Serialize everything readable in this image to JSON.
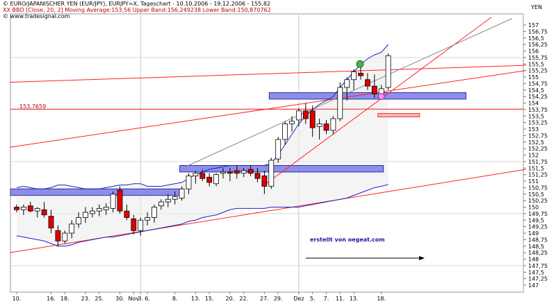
{
  "header": {
    "title_line": "© EURO/JAPANISCHER YEN (EUR/JPY), EURJPY=X, Tageschart - 10.10.2006 - 19.12.2006 - 155,82",
    "indicator_line": "XX BBD [Close, 20, 2] Moving Average:153,56 Upper Band:156,249238 Lower Band:150,870762",
    "source_line": "© www.tradesignal.com",
    "currency": "YEN"
  },
  "colors": {
    "up_candle": "#ffffff",
    "down_candle": "#e00000",
    "band_line": "#2020c0",
    "trend_line": "#ff2020",
    "zone_fill": "#8e8ee8",
    "annotation_text": "#1a1aa0"
  },
  "chart_data": {
    "type": "candlestick",
    "x_tick_labels": [
      "10.",
      "16.",
      "18.",
      "23.",
      "25.",
      "30.",
      "Nov",
      "3.",
      "6.",
      "8.",
      "13.",
      "15.",
      "20.",
      "22.",
      "27.",
      "29.",
      "Dez",
      "5.",
      "7.",
      "11.",
      "13.",
      "18."
    ],
    "y_ticks": [
      "157",
      "156,75",
      "156,5",
      "156,25",
      "156",
      "155,75",
      "155,5",
      "155,25",
      "155",
      "154,75",
      "154,5",
      "154,25",
      "154",
      "153,75",
      "153,5",
      "153,25",
      "153",
      "152,75",
      "152,5",
      "152,25",
      "152",
      "151,75",
      "151,5",
      "151,25",
      "151",
      "150,75",
      "150,5",
      "150,25",
      "150",
      "149,75",
      "149,5",
      "149,25",
      "149",
      "148,75",
      "148,5",
      "148,25",
      "148",
      "147,75",
      "147,5",
      "147,25",
      "147"
    ],
    "ylim": [
      147,
      157.25
    ],
    "candles": [
      {
        "o": 150.0,
        "h": 150.1,
        "l": 149.8,
        "c": 149.9
      },
      {
        "o": 149.9,
        "h": 150.1,
        "l": 149.7,
        "c": 150.0
      },
      {
        "o": 150.05,
        "h": 150.2,
        "l": 149.8,
        "c": 149.85
      },
      {
        "o": 149.85,
        "h": 150.0,
        "l": 149.6,
        "c": 149.95
      },
      {
        "o": 149.9,
        "h": 150.2,
        "l": 149.6,
        "c": 149.7
      },
      {
        "o": 149.65,
        "h": 149.9,
        "l": 149.0,
        "c": 149.2
      },
      {
        "o": 149.1,
        "h": 149.3,
        "l": 148.5,
        "c": 148.7
      },
      {
        "o": 148.7,
        "h": 149.1,
        "l": 148.6,
        "c": 149.0
      },
      {
        "o": 149.0,
        "h": 149.5,
        "l": 148.8,
        "c": 149.35
      },
      {
        "o": 149.35,
        "h": 149.8,
        "l": 149.2,
        "c": 149.6
      },
      {
        "o": 149.6,
        "h": 150.0,
        "l": 149.4,
        "c": 149.8
      },
      {
        "o": 149.75,
        "h": 150.0,
        "l": 149.6,
        "c": 149.85
      },
      {
        "o": 149.85,
        "h": 150.1,
        "l": 149.65,
        "c": 149.95
      },
      {
        "o": 149.9,
        "h": 150.15,
        "l": 149.7,
        "c": 150.0
      },
      {
        "o": 149.95,
        "h": 150.6,
        "l": 149.8,
        "c": 150.5
      },
      {
        "o": 150.65,
        "h": 150.8,
        "l": 149.75,
        "c": 149.85
      },
      {
        "o": 149.85,
        "h": 150.1,
        "l": 149.5,
        "c": 149.6
      },
      {
        "o": 149.55,
        "h": 149.7,
        "l": 148.95,
        "c": 149.1
      },
      {
        "o": 149.1,
        "h": 149.6,
        "l": 148.9,
        "c": 149.5
      },
      {
        "o": 149.5,
        "h": 149.8,
        "l": 149.3,
        "c": 149.6
      },
      {
        "o": 149.6,
        "h": 150.1,
        "l": 149.4,
        "c": 150.0
      },
      {
        "o": 150.05,
        "h": 150.3,
        "l": 149.9,
        "c": 150.2
      },
      {
        "o": 150.2,
        "h": 150.5,
        "l": 150.0,
        "c": 150.3
      },
      {
        "o": 150.3,
        "h": 150.6,
        "l": 150.1,
        "c": 150.4
      },
      {
        "o": 150.35,
        "h": 150.8,
        "l": 150.25,
        "c": 150.7
      },
      {
        "o": 150.7,
        "h": 151.3,
        "l": 150.5,
        "c": 151.2
      },
      {
        "o": 151.2,
        "h": 151.4,
        "l": 150.9,
        "c": 151.3
      },
      {
        "o": 151.3,
        "h": 151.45,
        "l": 151.0,
        "c": 151.1
      },
      {
        "o": 151.15,
        "h": 151.3,
        "l": 150.8,
        "c": 150.95
      },
      {
        "o": 150.9,
        "h": 151.3,
        "l": 150.8,
        "c": 151.25
      },
      {
        "o": 151.3,
        "h": 151.5,
        "l": 151.1,
        "c": 151.35
      },
      {
        "o": 151.35,
        "h": 151.5,
        "l": 151.0,
        "c": 151.3
      },
      {
        "o": 151.4,
        "h": 151.6,
        "l": 151.1,
        "c": 151.3
      },
      {
        "o": 151.3,
        "h": 151.5,
        "l": 151.15,
        "c": 151.4
      },
      {
        "o": 151.45,
        "h": 151.6,
        "l": 151.2,
        "c": 151.3
      },
      {
        "o": 151.3,
        "h": 151.5,
        "l": 150.95,
        "c": 151.1
      },
      {
        "o": 151.2,
        "h": 151.4,
        "l": 150.5,
        "c": 150.8
      },
      {
        "o": 150.8,
        "h": 151.9,
        "l": 150.7,
        "c": 151.8
      },
      {
        "o": 151.85,
        "h": 152.7,
        "l": 151.7,
        "c": 152.6
      },
      {
        "o": 152.6,
        "h": 153.3,
        "l": 152.4,
        "c": 153.2
      },
      {
        "o": 153.2,
        "h": 153.5,
        "l": 152.9,
        "c": 153.3
      },
      {
        "o": 153.35,
        "h": 153.8,
        "l": 153.1,
        "c": 153.7
      },
      {
        "o": 153.7,
        "h": 154.0,
        "l": 153.2,
        "c": 153.4
      },
      {
        "o": 153.7,
        "h": 153.9,
        "l": 152.7,
        "c": 153.05
      },
      {
        "o": 153.1,
        "h": 153.4,
        "l": 152.6,
        "c": 153.2
      },
      {
        "o": 153.2,
        "h": 153.35,
        "l": 152.8,
        "c": 152.95
      },
      {
        "o": 152.95,
        "h": 153.5,
        "l": 152.8,
        "c": 153.4
      },
      {
        "o": 153.4,
        "h": 154.8,
        "l": 153.3,
        "c": 154.6
      },
      {
        "o": 154.6,
        "h": 155.0,
        "l": 154.1,
        "c": 154.9
      },
      {
        "o": 154.9,
        "h": 155.3,
        "l": 154.5,
        "c": 155.2
      },
      {
        "o": 155.15,
        "h": 155.5,
        "l": 154.9,
        "c": 155.05
      },
      {
        "o": 154.9,
        "h": 155.15,
        "l": 154.5,
        "c": 154.65
      },
      {
        "o": 154.65,
        "h": 155.1,
        "l": 154.2,
        "c": 154.35
      },
      {
        "o": 154.35,
        "h": 154.7,
        "l": 154.15,
        "c": 154.55
      },
      {
        "o": 154.6,
        "h": 155.9,
        "l": 154.5,
        "c": 155.82
      }
    ],
    "bollinger": {
      "upper": [
        150.75,
        150.8,
        150.75,
        150.7,
        150.7,
        150.75,
        150.85,
        150.85,
        150.8,
        150.75,
        150.7,
        150.7,
        150.7,
        150.75,
        150.8,
        150.85,
        150.85,
        150.9,
        150.9,
        150.8,
        150.8,
        150.8,
        150.85,
        150.9,
        150.95,
        151.1,
        151.25,
        151.35,
        151.45,
        151.5,
        151.55,
        151.6,
        151.6,
        151.6,
        151.6,
        151.6,
        151.6,
        151.7,
        152.0,
        152.4,
        152.8,
        153.2,
        153.5,
        153.75,
        153.95,
        154.1,
        154.25,
        154.6,
        154.9,
        155.2,
        155.5,
        155.7,
        155.85,
        155.95,
        156.25
      ],
      "lower": [
        148.9,
        148.85,
        148.8,
        148.75,
        148.7,
        148.6,
        148.5,
        148.5,
        148.55,
        148.65,
        148.7,
        148.75,
        148.8,
        148.85,
        148.85,
        148.9,
        148.95,
        149.0,
        149.05,
        149.1,
        149.15,
        149.2,
        149.25,
        149.3,
        149.35,
        149.45,
        149.5,
        149.6,
        149.65,
        149.7,
        149.8,
        149.9,
        149.95,
        149.95,
        149.95,
        149.95,
        149.95,
        150.0,
        150.0,
        150.0,
        150.0,
        150.0,
        150.05,
        150.1,
        150.15,
        150.2,
        150.25,
        150.3,
        150.35,
        150.45,
        150.55,
        150.65,
        150.75,
        150.8,
        150.87
      ],
      "moving_average": 153.56
    },
    "horizontal_line": {
      "value": 153.7659,
      "label": "153,7659"
    },
    "zones": [
      {
        "from_index": 0,
        "to_index": 24,
        "low": 150.45,
        "high": 150.7
      },
      {
        "from_index": 24,
        "to_index": 53,
        "low": 151.35,
        "high": 151.6
      },
      {
        "from_index": 37,
        "to_index": 65,
        "low": 154.15,
        "high": 154.4
      }
    ],
    "annotation": "erstellt von oegeat.com"
  }
}
